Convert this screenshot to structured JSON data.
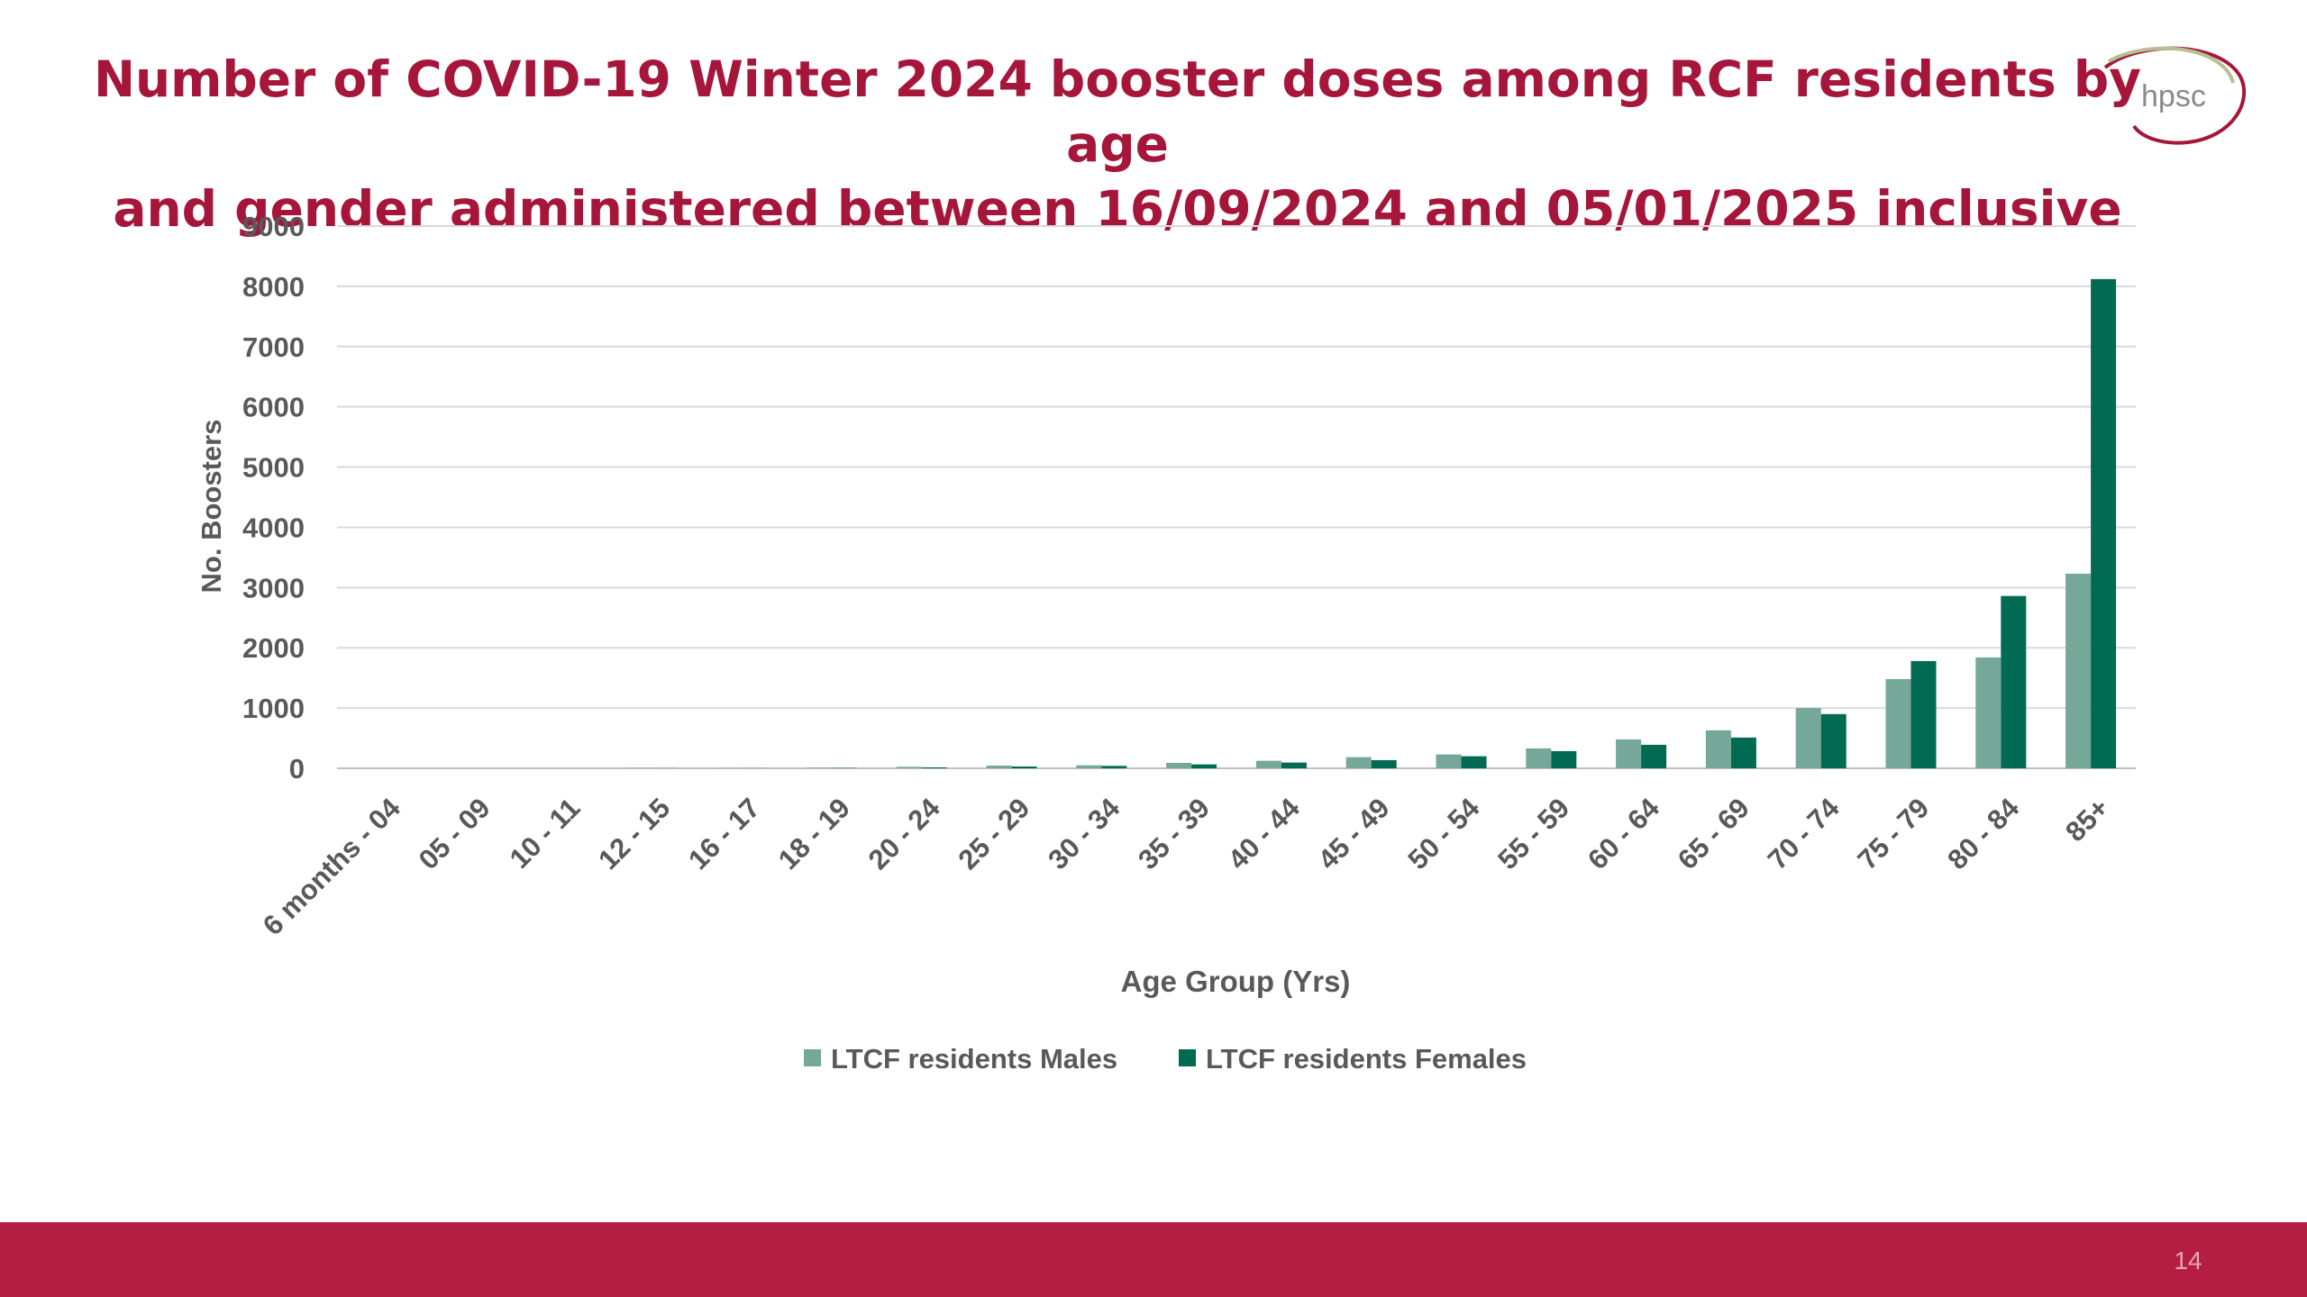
{
  "slide": {
    "title_line1": "Number of COVID-19 Winter 2024 booster doses among RCF residents by age",
    "title_line2": "and gender administered between 16/09/2024 and 05/01/2025 inclusive",
    "logo_text": "hpsc",
    "page_number": "14",
    "colors": {
      "title": "#A6163A",
      "footer_bar": "#B41E42",
      "males": "#76A89A",
      "females": "#006B52"
    }
  },
  "chart_data": {
    "type": "bar",
    "title": "",
    "xlabel": "Age Group (Yrs)",
    "ylabel": "No. Boosters",
    "ylim": [
      0,
      9000
    ],
    "yticks": [
      0,
      1000,
      2000,
      3000,
      4000,
      5000,
      6000,
      7000,
      8000,
      9000
    ],
    "grid": true,
    "legend_position": "bottom",
    "categories": [
      "6 months - 04",
      "05 - 09",
      "10 - 11",
      "12 - 15",
      "16 - 17",
      "18 - 19",
      "20 - 24",
      "25 - 29",
      "30 - 34",
      "35 - 39",
      "40 - 44",
      "45 - 49",
      "50 - 54",
      "55 - 59",
      "60 - 64",
      "65 - 69",
      "70 - 74",
      "75 - 79",
      "80 - 84",
      "85+"
    ],
    "series": [
      {
        "name": "LTCF residents Males",
        "color": "#76A89A",
        "values": [
          0,
          0,
          0,
          5,
          3,
          10,
          25,
          45,
          50,
          90,
          125,
          185,
          230,
          330,
          480,
          630,
          1000,
          1480,
          1840,
          3230
        ]
      },
      {
        "name": "LTCF residents Females",
        "color": "#006B52",
        "values": [
          0,
          0,
          0,
          2,
          2,
          5,
          15,
          30,
          40,
          65,
          95,
          135,
          200,
          285,
          390,
          510,
          900,
          1780,
          2860,
          8120
        ]
      }
    ]
  }
}
